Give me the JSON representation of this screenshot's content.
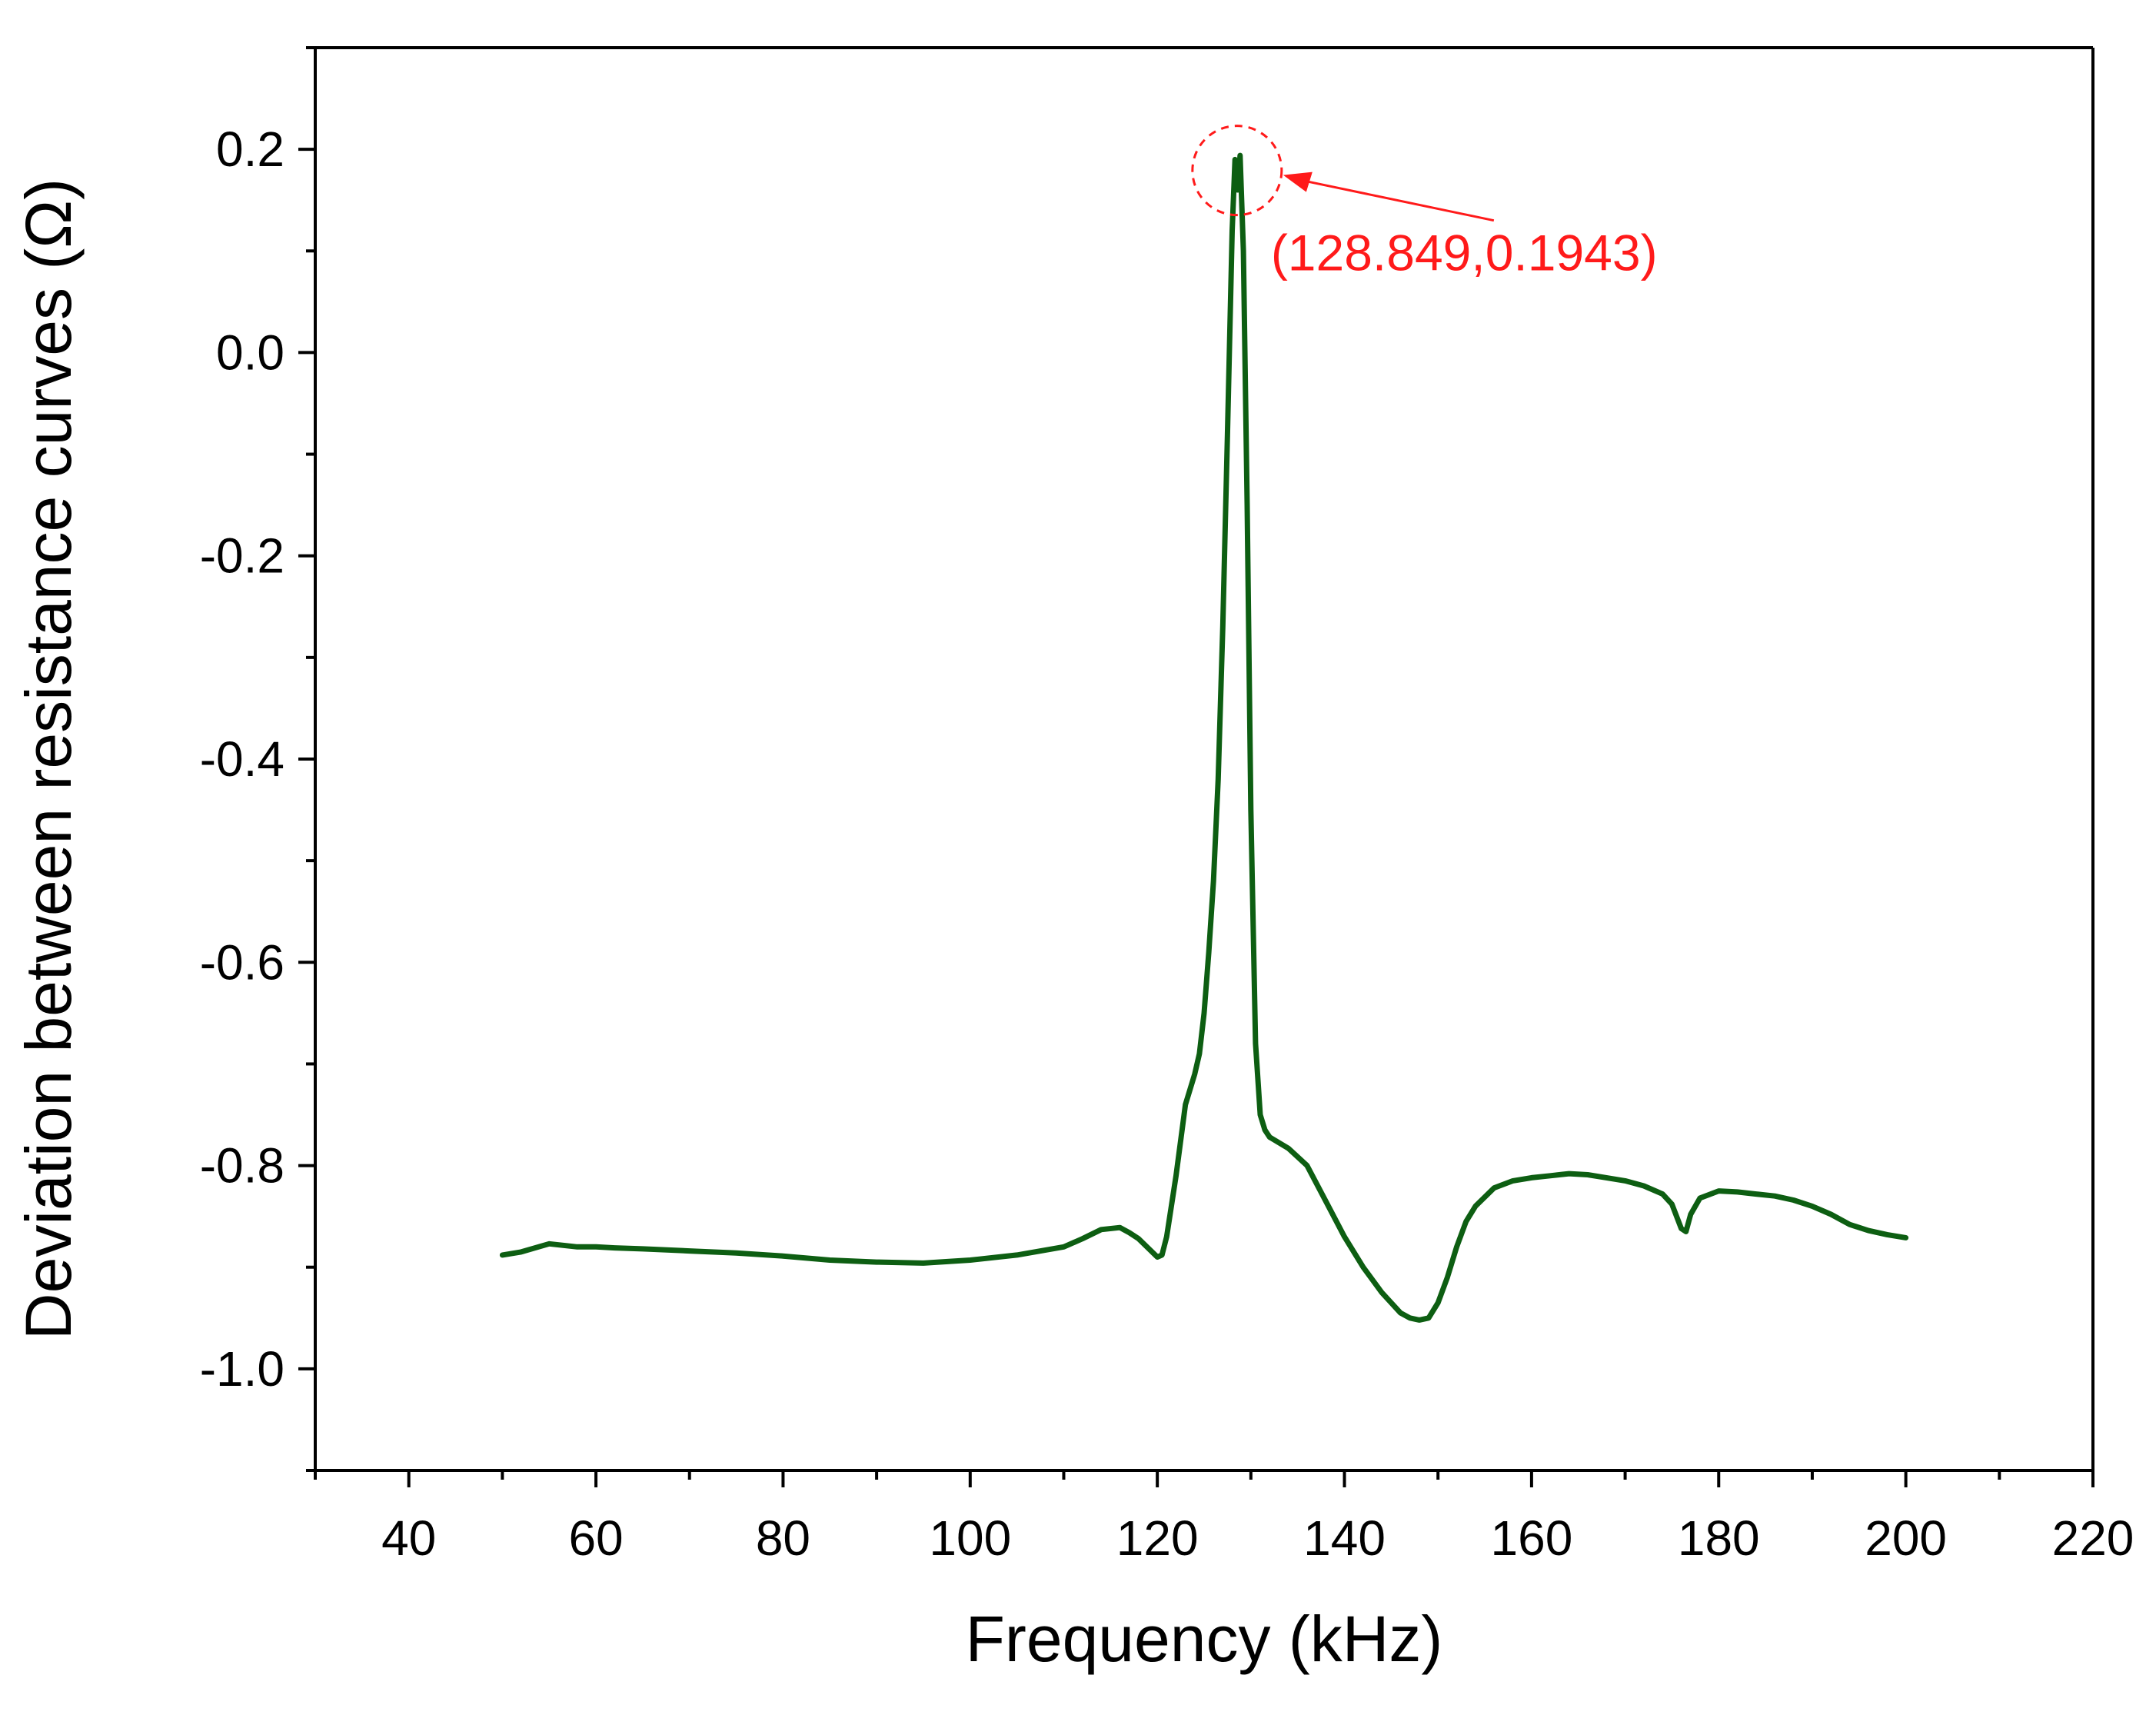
{
  "chart_data": {
    "type": "line",
    "xlabel": "Frequency (kHz)",
    "ylabel": "Deviation between resistance curves (Ω)",
    "xlim": [
      30,
      220
    ],
    "ylim": [
      -1.1,
      0.3
    ],
    "x_ticks": [
      40,
      60,
      80,
      100,
      120,
      140,
      160,
      180,
      200,
      220
    ],
    "x_tick_labels": [
      "40",
      "60",
      "80",
      "100",
      "120",
      "140",
      "160",
      "180",
      "200",
      "220"
    ],
    "x_minor_ticks": [
      30,
      50,
      70,
      90,
      110,
      130,
      150,
      170,
      190,
      210
    ],
    "y_ticks": [
      -1.0,
      -0.8,
      -0.6,
      -0.4,
      -0.2,
      0.0,
      0.2
    ],
    "y_tick_labels": [
      "-1.0",
      "-0.8",
      "-0.6",
      "-0.4",
      "-0.2",
      "0.0",
      "0.2"
    ],
    "y_minor_ticks": [
      -1.1,
      -0.9,
      -0.7,
      -0.5,
      -0.3,
      -0.1,
      0.1,
      0.3
    ],
    "grid": false,
    "series": [
      {
        "color": "#0d5e12",
        "x": [
          50,
          52,
          55,
          58,
          60,
          62,
          65,
          70,
          75,
          80,
          85,
          90,
          95,
          100,
          105,
          110,
          112,
          114,
          116,
          117,
          118,
          119,
          120,
          120.5,
          121,
          122,
          123,
          124,
          124.5,
          125,
          125.5,
          126,
          126.5,
          127,
          127.5,
          128,
          128.3,
          128.6,
          128.849,
          129.2,
          129.6,
          130,
          130.5,
          131,
          131.5,
          132,
          134,
          136,
          138,
          140,
          142,
          144,
          146,
          147,
          148,
          149,
          150,
          151,
          152,
          153,
          154,
          156,
          158,
          160,
          162,
          164,
          166,
          168,
          170,
          172,
          174,
          175,
          176,
          176.5,
          177,
          178,
          180,
          182,
          184,
          186,
          188,
          190,
          192,
          194,
          196,
          198,
          200
        ],
        "y": [
          -0.888,
          -0.885,
          -0.877,
          -0.88,
          -0.88,
          -0.881,
          -0.882,
          -0.884,
          -0.886,
          -0.889,
          -0.893,
          -0.895,
          -0.896,
          -0.893,
          -0.888,
          -0.88,
          -0.872,
          -0.863,
          -0.861,
          -0.866,
          -0.872,
          -0.881,
          -0.89,
          -0.888,
          -0.87,
          -0.81,
          -0.74,
          -0.71,
          -0.69,
          -0.65,
          -0.59,
          -0.52,
          -0.42,
          -0.27,
          -0.08,
          0.12,
          0.19,
          0.16,
          0.194,
          0.1,
          -0.15,
          -0.45,
          -0.68,
          -0.75,
          -0.765,
          -0.772,
          -0.783,
          -0.8,
          -0.835,
          -0.87,
          -0.9,
          -0.925,
          -0.945,
          -0.95,
          -0.952,
          -0.95,
          -0.935,
          -0.91,
          -0.88,
          -0.855,
          -0.84,
          -0.822,
          -0.815,
          -0.812,
          -0.81,
          -0.808,
          -0.809,
          -0.812,
          -0.815,
          -0.82,
          -0.828,
          -0.838,
          -0.862,
          -0.865,
          -0.848,
          -0.832,
          -0.825,
          -0.826,
          -0.828,
          -0.83,
          -0.834,
          -0.84,
          -0.848,
          -0.858,
          -0.864,
          -0.868,
          -0.871
        ]
      }
    ],
    "annotations": [
      {
        "text": "(128.849,0.1943)",
        "x": 128.849,
        "y": 0.1943,
        "color": "#ff1a1a"
      }
    ]
  }
}
